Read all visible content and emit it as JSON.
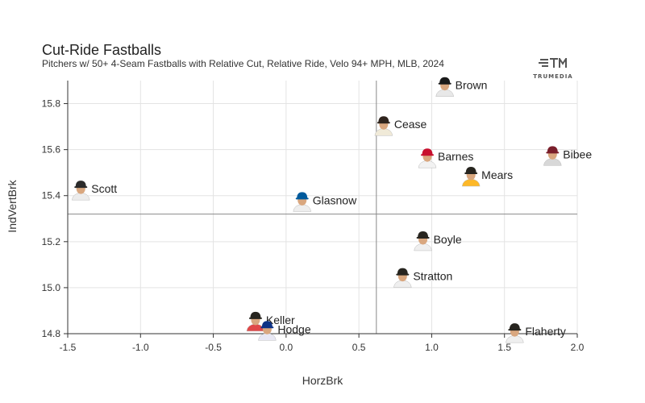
{
  "title": "Cut-Ride Fastballs",
  "subtitle": "Pitchers w/ 50+ 4-Seam Fastballs with Relative Cut, Relative Ride, Velo 94+ MPH, MLB, 2024",
  "logo": {
    "text": "TRUMEDIA"
  },
  "chart_data": {
    "type": "scatter",
    "title": "Cut-Ride Fastballs",
    "xlabel": "HorzBrk",
    "ylabel": "IndVertBrk",
    "xlim": [
      -1.5,
      2.0
    ],
    "ylim": [
      14.8,
      15.9
    ],
    "xticks": [
      -1.5,
      -1.0,
      -0.5,
      0.0,
      0.5,
      1.0,
      1.5,
      2.0
    ],
    "xtick_labels": [
      "-1.5",
      "-1.0",
      "-0.5",
      "0.0",
      "0.5",
      "1.0",
      "1.5",
      "2.0"
    ],
    "yticks": [
      14.8,
      15.0,
      15.2,
      15.4,
      15.6,
      15.8
    ],
    "ytick_labels": [
      "14.8",
      "15.0",
      "15.2",
      "15.4",
      "15.6",
      "15.8"
    ],
    "grid": true,
    "reference_lines": {
      "x": 0.62,
      "y": 15.32
    },
    "points": [
      {
        "name": "Brown",
        "x": 1.09,
        "y": 15.88,
        "cap": "#1a1a1a",
        "shirt": "#e8e8e8"
      },
      {
        "name": "Cease",
        "x": 0.67,
        "y": 15.71,
        "cap": "#2f241d",
        "shirt": "#f0ead8"
      },
      {
        "name": "Barnes",
        "x": 0.97,
        "y": 15.57,
        "cap": "#c8102e",
        "shirt": "#f2f2f2"
      },
      {
        "name": "Bibee",
        "x": 1.83,
        "y": 15.58,
        "cap": "#7a1f2b",
        "shirt": "#d8d8d8"
      },
      {
        "name": "Mears",
        "x": 1.27,
        "y": 15.49,
        "cap": "#27251f",
        "shirt": "#fdb827"
      },
      {
        "name": "Scott",
        "x": -1.41,
        "y": 15.43,
        "cap": "#2b2b2b",
        "shirt": "#ececec"
      },
      {
        "name": "Glasnow",
        "x": 0.11,
        "y": 15.38,
        "cap": "#005a9c",
        "shirt": "#eeeeee"
      },
      {
        "name": "Boyle",
        "x": 0.94,
        "y": 15.21,
        "cap": "#27251f",
        "shirt": "#efefef"
      },
      {
        "name": "Stratton",
        "x": 0.8,
        "y": 15.05,
        "cap": "#27251f",
        "shirt": "#efefef"
      },
      {
        "name": "Keller",
        "x": -0.21,
        "y": 14.86,
        "cap": "#27251f",
        "shirt": "#e04848"
      },
      {
        "name": "Hodge",
        "x": -0.13,
        "y": 14.82,
        "cap": "#0e3386",
        "shirt": "#e8e8f4"
      },
      {
        "name": "Flaherty",
        "x": 1.57,
        "y": 14.81,
        "cap": "#27251f",
        "shirt": "#efefef"
      }
    ]
  }
}
